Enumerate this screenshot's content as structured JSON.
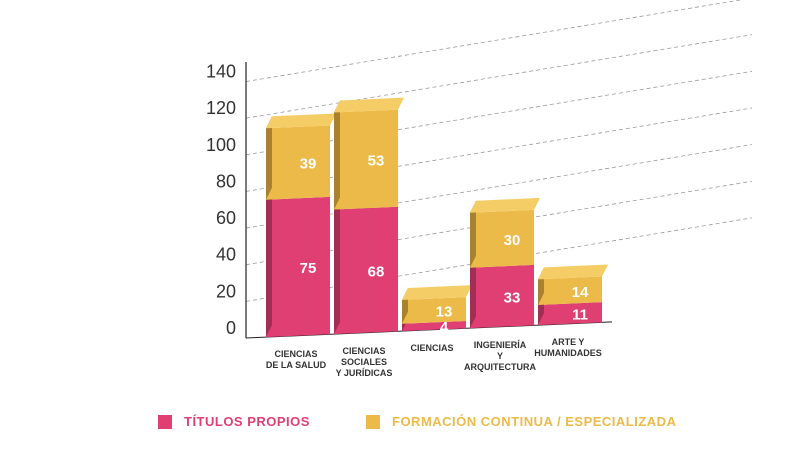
{
  "chart_data": {
    "type": "bar",
    "stacked": true,
    "categories": [
      [
        "CIENCIAS",
        "DE LA SALUD"
      ],
      [
        "CIENCIAS",
        "SOCIALES",
        "Y JURÍDICAS"
      ],
      [
        "CIENCIAS"
      ],
      [
        "INGENIERÍA",
        "Y",
        "ARQUITECTURA"
      ],
      [
        "ARTE Y",
        "HUMANIDADES"
      ]
    ],
    "series": [
      {
        "name": "TÍTULOS PROPIOS",
        "values": [
          75,
          68,
          4,
          33,
          11
        ]
      },
      {
        "name": "FORMACIÓN CONTINUA / ESPECIALIZADA",
        "values": [
          39,
          53,
          13,
          30,
          14
        ]
      }
    ],
    "yticks": [
      0,
      20,
      40,
      60,
      80,
      100,
      120,
      140
    ],
    "ylim": [
      0,
      140
    ],
    "grid": true,
    "legend_position": "bottom"
  },
  "colors": {
    "series0": {
      "front": "#e03f73",
      "side": "#a32e55",
      "top": "#ea6e95"
    },
    "series1": {
      "front": "#ecba48",
      "side": "#a8822f",
      "top": "#f4cd66"
    },
    "legend0": "#e03f73",
    "legend1": "#ecba48",
    "axis": "#222222",
    "grid": "#9a9a9a"
  }
}
